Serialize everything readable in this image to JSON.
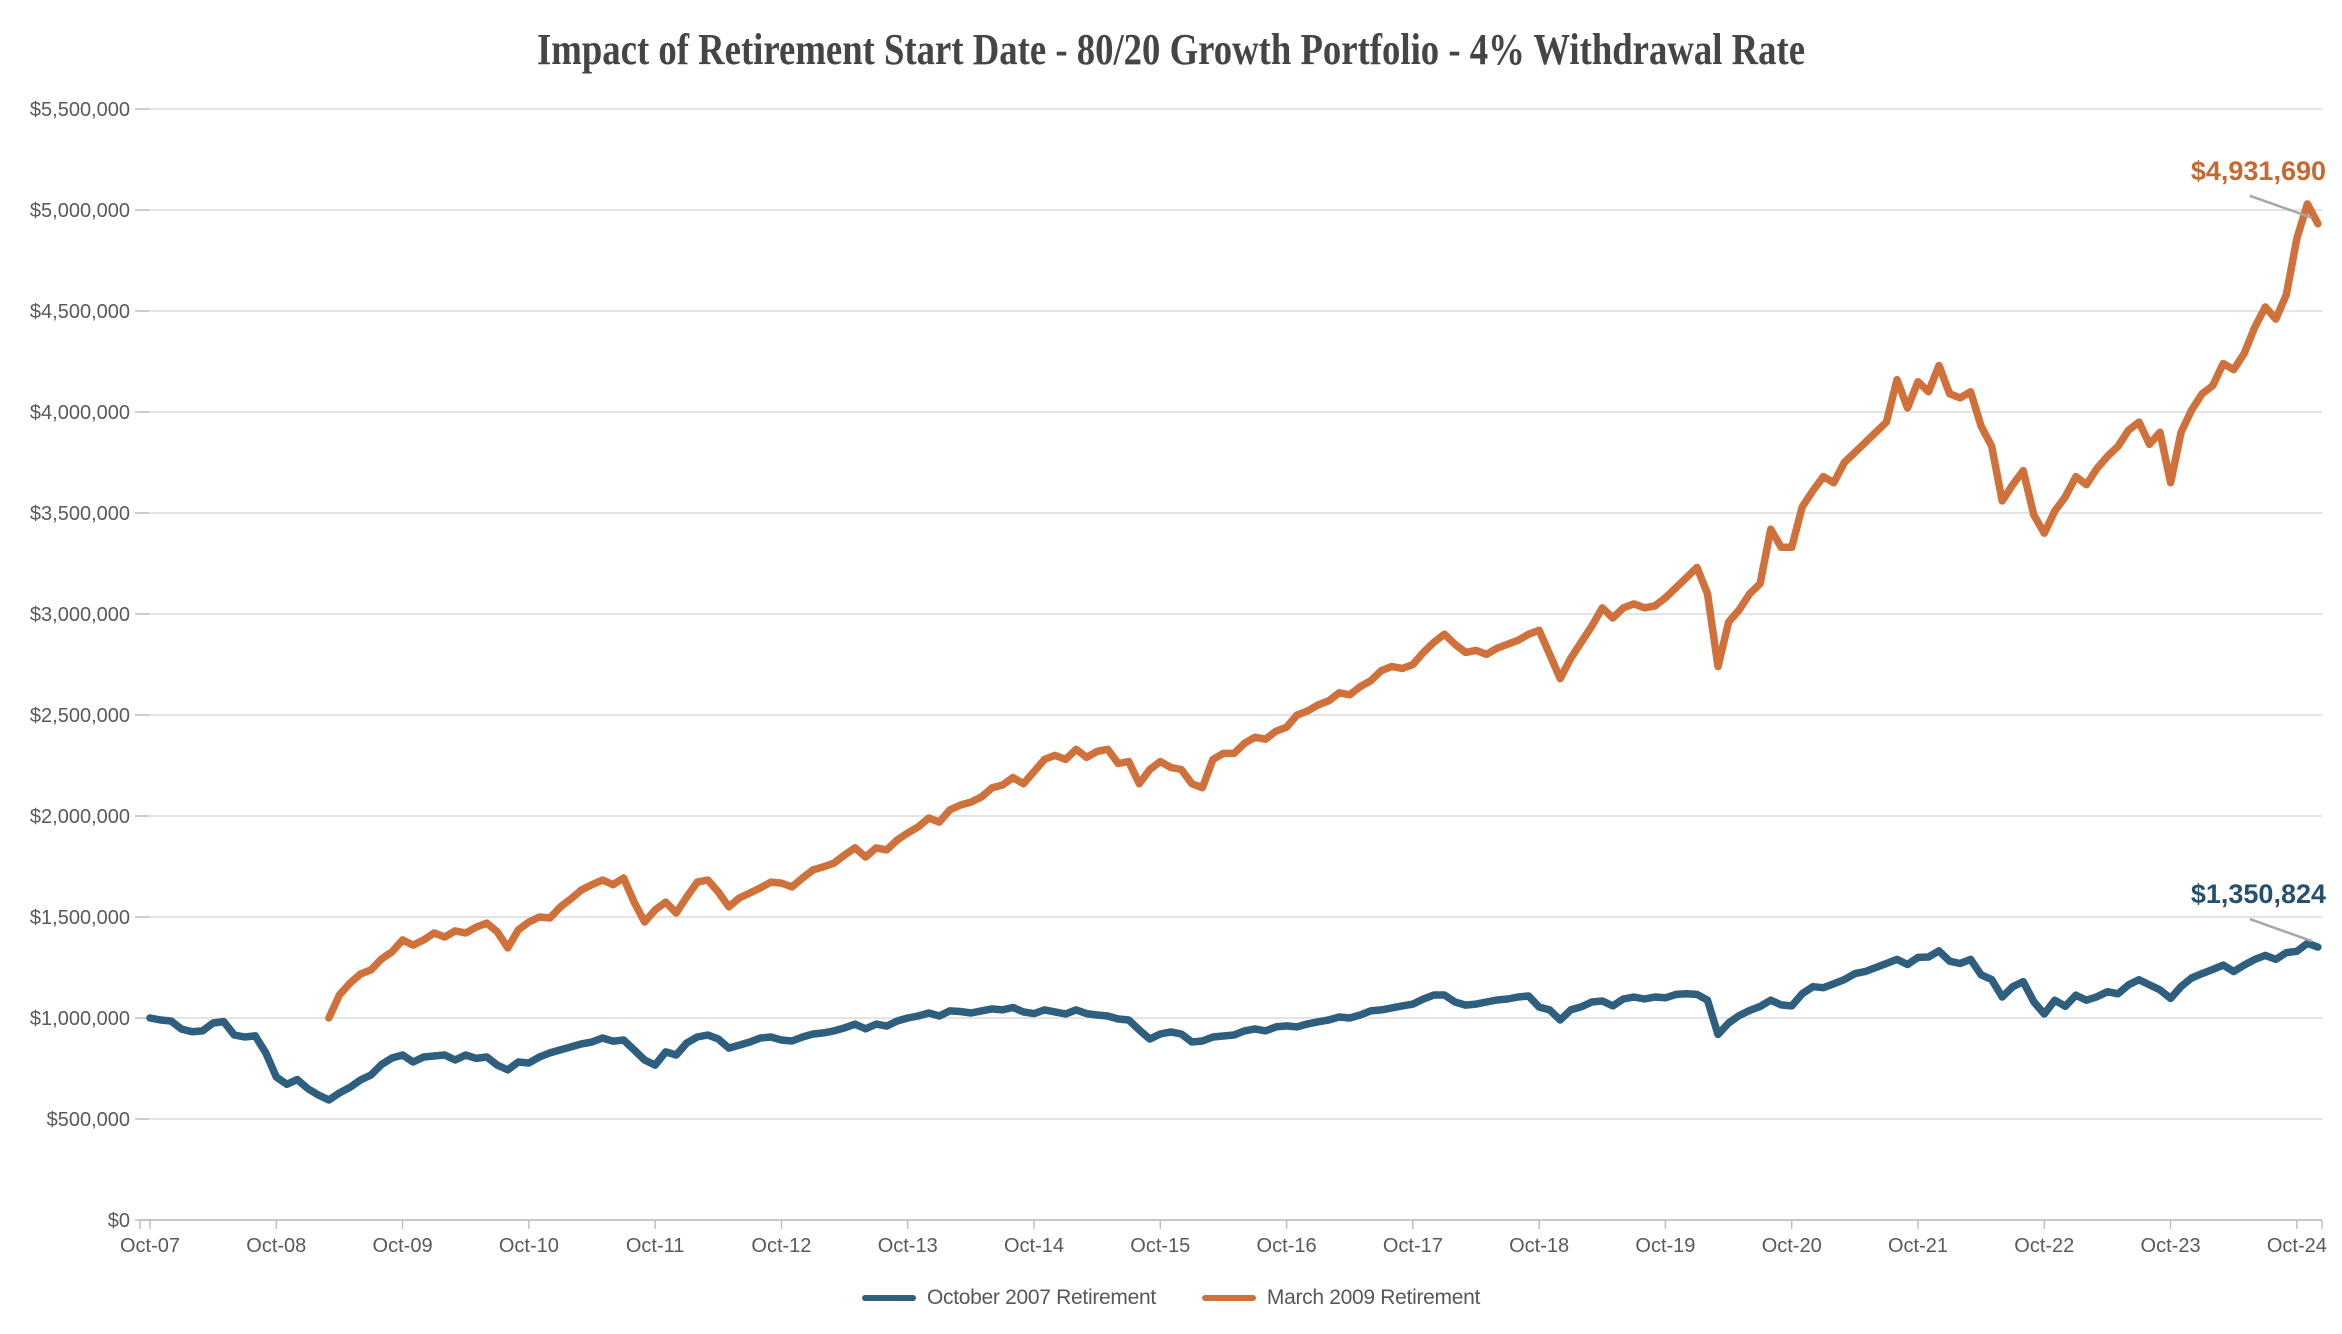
{
  "title": "Impact of Retirement Start Date - 80/20 Growth Portfolio - 4% Withdrawal Rate",
  "colors": {
    "background": "#FFFFFF",
    "series_oct2007": "#2E5F7E",
    "series_mar2009": "#D0713B",
    "grid": "#DCDCDC",
    "axis": "#BFBFBF",
    "tick_label": "#595959",
    "title_text": "#454545",
    "legend_text": "#575757",
    "leader_line": "#A6A6A6",
    "annotation_oct2007": "#26506F",
    "annotation_mar2009": "#C8682E"
  },
  "legend": {
    "items": [
      {
        "label": "October 2007 Retirement",
        "color_key": "series_oct2007"
      },
      {
        "label": "March 2009 Retirement",
        "color_key": "series_mar2009"
      }
    ]
  },
  "annotations": [
    {
      "text": "$4,931,690",
      "series_index": 1,
      "color_key": "annotation_mar2009"
    },
    {
      "text": "$1,350,824",
      "series_index": 0,
      "color_key": "annotation_oct2007"
    }
  ],
  "chart_data": {
    "type": "line",
    "title": "Impact of Retirement Start Date - 80/20 Growth Portfolio - 4% Withdrawal Rate",
    "xlabel": "",
    "ylabel": "",
    "grid": "horizontal",
    "legend_position": "bottom-center",
    "ylim": [
      0,
      5500000
    ],
    "y_tick_step": 500000,
    "y_axis_tick_labels": [
      "$0",
      "$500,000",
      "$1,000,000",
      "$1,500,000",
      "$2,000,000",
      "$2,500,000",
      "$3,000,000",
      "$3,500,000",
      "$4,000,000",
      "$4,500,000",
      "$5,000,000",
      "$5,500,000"
    ],
    "x_axis_tick_labels": [
      "Oct-07",
      "Oct-08",
      "Oct-09",
      "Oct-10",
      "Oct-11",
      "Oct-12",
      "Oct-13",
      "Oct-14",
      "Oct-15",
      "Oct-16",
      "Oct-17",
      "Oct-18",
      "Oct-19",
      "Oct-20",
      "Oct-21",
      "Oct-22",
      "Oct-23",
      "Oct-24"
    ],
    "values_unit": "millions_usd",
    "x_unit": "month",
    "series": [
      {
        "name": "October 2007 Retirement",
        "color_key": "series_oct2007",
        "start_month": "2007-10",
        "end_value_label": "$1,350,824",
        "values": [
          1.0,
          0.99,
          0.985,
          0.945,
          0.932,
          0.936,
          0.975,
          0.982,
          0.916,
          0.906,
          0.912,
          0.827,
          0.708,
          0.672,
          0.695,
          0.65,
          0.619,
          0.594,
          0.629,
          0.657,
          0.693,
          0.718,
          0.77,
          0.802,
          0.817,
          0.782,
          0.807,
          0.812,
          0.817,
          0.792,
          0.817,
          0.8,
          0.807,
          0.767,
          0.743,
          0.782,
          0.777,
          0.807,
          0.827,
          0.842,
          0.857,
          0.872,
          0.881,
          0.901,
          0.885,
          0.891,
          0.842,
          0.792,
          0.767,
          0.832,
          0.817,
          0.876,
          0.906,
          0.916,
          0.896,
          0.851,
          0.866,
          0.881,
          0.901,
          0.906,
          0.891,
          0.886,
          0.906,
          0.921,
          0.926,
          0.936,
          0.951,
          0.97,
          0.946,
          0.97,
          0.96,
          0.985,
          1.0,
          1.01,
          1.025,
          1.01,
          1.035,
          1.032,
          1.025,
          1.035,
          1.045,
          1.04,
          1.052,
          1.03,
          1.022,
          1.04,
          1.03,
          1.02,
          1.04,
          1.022,
          1.015,
          1.01,
          0.995,
          0.99,
          0.941,
          0.896,
          0.921,
          0.931,
          0.921,
          0.881,
          0.886,
          0.906,
          0.911,
          0.916,
          0.936,
          0.946,
          0.936,
          0.956,
          0.961,
          0.956,
          0.971,
          0.981,
          0.99,
          1.005,
          1.0,
          1.015,
          1.035,
          1.04,
          1.05,
          1.06,
          1.069,
          1.094,
          1.114,
          1.114,
          1.079,
          1.064,
          1.069,
          1.079,
          1.089,
          1.094,
          1.104,
          1.109,
          1.054,
          1.04,
          0.99,
          1.04,
          1.055,
          1.079,
          1.084,
          1.06,
          1.094,
          1.104,
          1.094,
          1.104,
          1.1,
          1.117,
          1.12,
          1.117,
          1.088,
          0.919,
          0.975,
          1.012,
          1.037,
          1.057,
          1.088,
          1.065,
          1.06,
          1.12,
          1.155,
          1.15,
          1.17,
          1.19,
          1.22,
          1.23,
          1.25,
          1.27,
          1.29,
          1.265,
          1.3,
          1.302,
          1.332,
          1.281,
          1.27,
          1.29,
          1.214,
          1.19,
          1.104,
          1.155,
          1.18,
          1.08,
          1.02,
          1.088,
          1.058,
          1.113,
          1.088,
          1.105,
          1.13,
          1.12,
          1.164,
          1.189,
          1.164,
          1.139,
          1.097,
          1.156,
          1.198,
          1.22,
          1.24,
          1.262,
          1.23,
          1.262,
          1.29,
          1.31,
          1.29,
          1.324,
          1.33,
          1.37,
          1.3508
        ]
      },
      {
        "name": "March 2009 Retirement",
        "color_key": "series_mar2009",
        "start_month": "2009-03",
        "end_value_label": "$4,931,690",
        "values": [
          1.0,
          1.114,
          1.173,
          1.218,
          1.238,
          1.292,
          1.327,
          1.386,
          1.361,
          1.386,
          1.421,
          1.401,
          1.431,
          1.421,
          1.45,
          1.47,
          1.426,
          1.347,
          1.436,
          1.475,
          1.5,
          1.495,
          1.55,
          1.59,
          1.634,
          1.66,
          1.683,
          1.66,
          1.693,
          1.574,
          1.475,
          1.535,
          1.574,
          1.52,
          1.599,
          1.673,
          1.683,
          1.624,
          1.55,
          1.594,
          1.619,
          1.644,
          1.673,
          1.668,
          1.649,
          1.693,
          1.733,
          1.748,
          1.767,
          1.807,
          1.842,
          1.797,
          1.842,
          1.832,
          1.881,
          1.916,
          1.946,
          1.99,
          1.97,
          2.03,
          2.054,
          2.069,
          2.094,
          2.139,
          2.153,
          2.19,
          2.16,
          2.22,
          2.28,
          2.3,
          2.28,
          2.33,
          2.29,
          2.32,
          2.33,
          2.26,
          2.27,
          2.16,
          2.23,
          2.27,
          2.24,
          2.23,
          2.16,
          2.14,
          2.28,
          2.31,
          2.31,
          2.36,
          2.39,
          2.38,
          2.42,
          2.44,
          2.5,
          2.52,
          2.55,
          2.57,
          2.61,
          2.6,
          2.64,
          2.67,
          2.72,
          2.74,
          2.73,
          2.75,
          2.81,
          2.86,
          2.9,
          2.85,
          2.81,
          2.82,
          2.8,
          2.83,
          2.85,
          2.87,
          2.9,
          2.92,
          2.8,
          2.68,
          2.78,
          2.86,
          2.94,
          3.03,
          2.98,
          3.03,
          3.05,
          3.03,
          3.04,
          3.08,
          3.13,
          3.18,
          3.23,
          3.1,
          2.74,
          2.96,
          3.02,
          3.1,
          3.15,
          3.42,
          3.33,
          3.33,
          3.53,
          3.61,
          3.68,
          3.65,
          3.75,
          3.8,
          3.85,
          3.9,
          3.95,
          4.16,
          4.02,
          4.15,
          4.1,
          4.23,
          4.09,
          4.07,
          4.1,
          3.93,
          3.83,
          3.56,
          3.64,
          3.71,
          3.49,
          3.4,
          3.51,
          3.58,
          3.68,
          3.64,
          3.72,
          3.78,
          3.83,
          3.91,
          3.95,
          3.84,
          3.9,
          3.65,
          3.9,
          4.01,
          4.09,
          4.13,
          4.24,
          4.21,
          4.29,
          4.42,
          4.52,
          4.46,
          4.58,
          4.86,
          5.03,
          4.9317
        ]
      }
    ]
  }
}
